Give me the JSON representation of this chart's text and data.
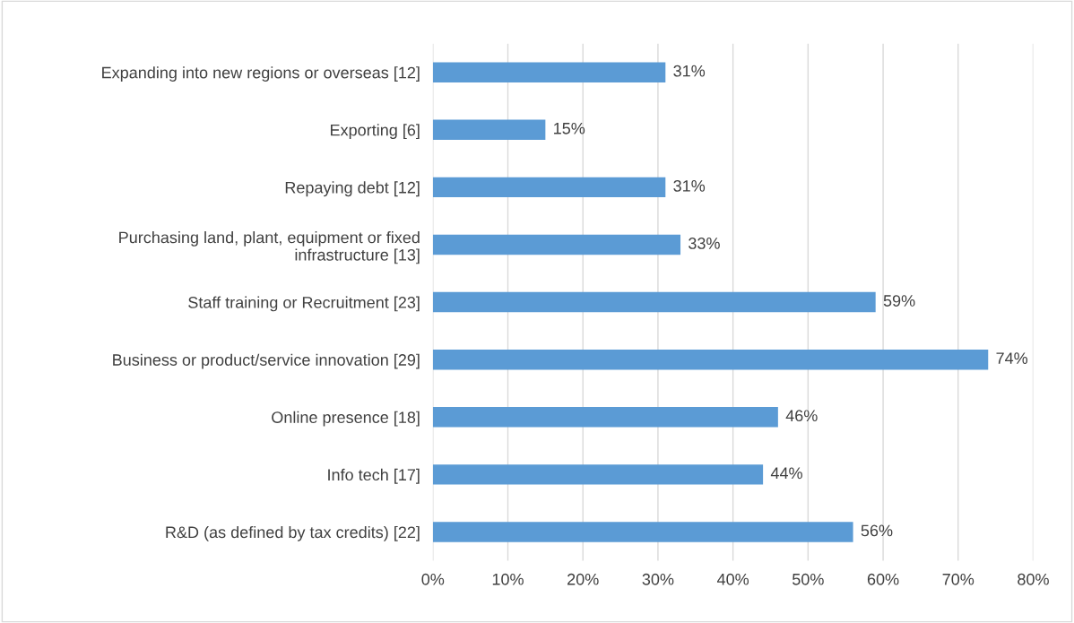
{
  "chart_data": {
    "type": "bar",
    "orientation": "horizontal",
    "categories": [
      "Expanding into new regions or overseas [12]",
      "Exporting [6]",
      "Repaying debt [12]",
      "Purchasing land, plant, equipment or fixed\ninfrastructure [13]",
      "Staff training or Recruitment [23]",
      "Business or product/service innovation [29]",
      "Online presence [18]",
      "Info tech [17]",
      "R&D (as defined by tax credits) [22]"
    ],
    "values": [
      31,
      15,
      31,
      33,
      59,
      74,
      46,
      44,
      56
    ],
    "value_labels": [
      "31%",
      "15%",
      "31%",
      "33%",
      "59%",
      "74%",
      "46%",
      "44%",
      "56%"
    ],
    "color": "#5b9bd5",
    "xlim": [
      0,
      80
    ],
    "xticks": [
      {
        "value": 0,
        "label": "0%"
      },
      {
        "value": 10,
        "label": "10%"
      },
      {
        "value": 20,
        "label": "20%"
      },
      {
        "value": 30,
        "label": "30%"
      },
      {
        "value": 40,
        "label": "40%"
      },
      {
        "value": 50,
        "label": "50%"
      },
      {
        "value": 60,
        "label": "60%"
      },
      {
        "value": 70,
        "label": "70%"
      },
      {
        "value": 80,
        "label": "80%"
      }
    ],
    "grid": "x",
    "legend": false
  }
}
